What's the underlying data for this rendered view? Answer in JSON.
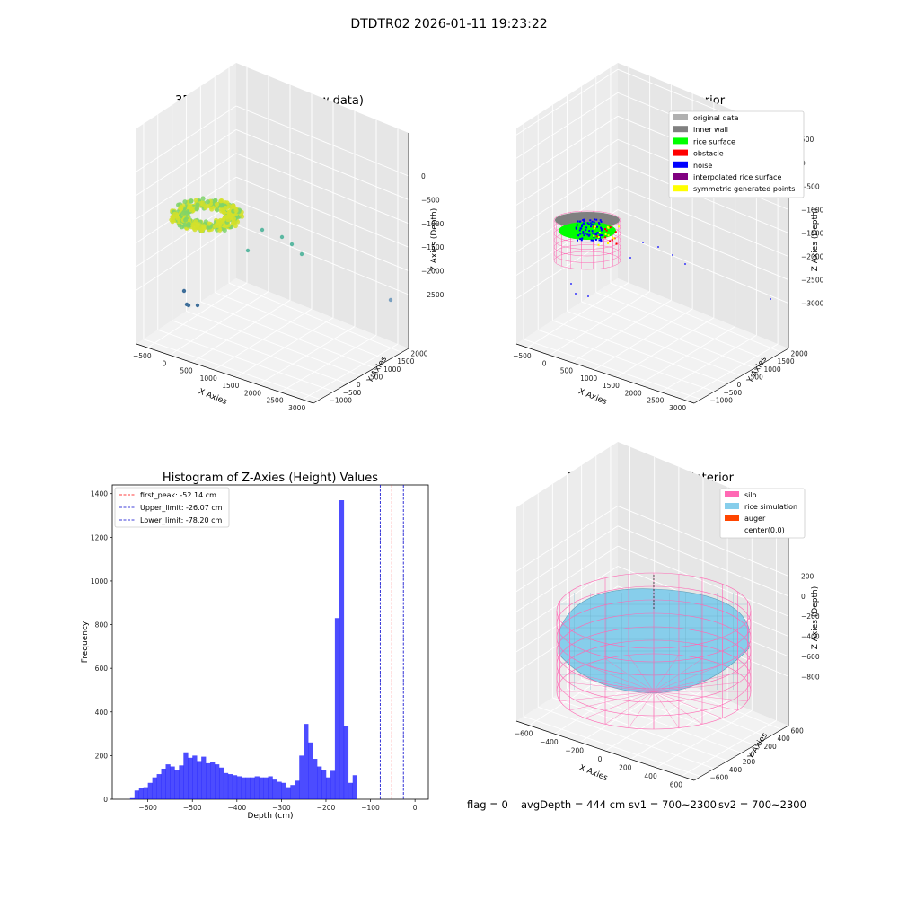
{
  "suptitle": "DTDTR02 2026-01-11 19:23:22",
  "colors": {
    "original": "#b0b0b0",
    "wall": "#808080",
    "rice": "#00ff00",
    "obstacle": "#ff0000",
    "noise": "#0000ff",
    "interp": "#800080",
    "sym": "#ffff00",
    "silo": "#ff69b4",
    "rice_sim": "#87ceeb",
    "auger": "#ff4500",
    "hist": "#0000ff",
    "peak": "#ff0000",
    "limit": "#0000cd",
    "raw_yellow": "#d4e02a",
    "raw_green": "#7fd36a",
    "raw_teal": "#5cb8a2",
    "raw_blue": "#3f6f9a"
  },
  "panel1": {
    "title": "3D Plot of Silo Interior(row data)",
    "xlabel": "X Axies",
    "ylabel": "Y Axies",
    "zlabel": "Z Axies (Depth)",
    "xticks": [
      "−500",
      "0",
      "500",
      "1000",
      "1500",
      "2000",
      "2500",
      "3000"
    ],
    "yticks": [
      "−1000",
      "−500",
      "0",
      "500",
      "1000",
      "1500",
      "2000"
    ],
    "zticks": [
      "0",
      "−500",
      "−1000",
      "−1500",
      "−2000",
      "−2500"
    ]
  },
  "panel2": {
    "title": "3D classify of Silo Interior",
    "xlabel": "X Axies",
    "ylabel": "Y Axies",
    "zlabel": "Z Axies (Depth)",
    "xticks": [
      "−500",
      "0",
      "500",
      "1000",
      "1500",
      "2000",
      "2500",
      "3000"
    ],
    "yticks": [
      "−1000",
      "−500",
      "0",
      "500",
      "1000",
      "1500",
      "2000"
    ],
    "zticks": [
      "500",
      "0",
      "−500",
      "−1000",
      "−1500",
      "−2000",
      "−2500",
      "−3000"
    ],
    "legend": [
      "original data",
      "inner wall",
      "rice surface",
      "obstacle",
      "noise",
      "interpolated rice surface",
      "symmetric generated points"
    ]
  },
  "panel4": {
    "title": "3D simulation of Silo Interior",
    "xlabel": "X Axies",
    "ylabel": "Y Axies",
    "zlabel": "Z Axies (Depth)",
    "xticks": [
      "−600",
      "−400",
      "−200",
      "0",
      "200",
      "400",
      "600"
    ],
    "yticks": [
      "−600",
      "−400",
      "−200",
      "0",
      "200",
      "400",
      "600"
    ],
    "zticks": [
      "200",
      "0",
      "−200",
      "−400",
      "−600",
      "−800"
    ],
    "legend": [
      "silo",
      "rice simulation",
      "auger",
      "center(0,0)"
    ]
  },
  "status": {
    "flag": "flag = 0",
    "avg": "avgDepth = 444 cm",
    "sv1": "sv1 = 700~2300",
    "sv2": "sv2 = 700~2300"
  },
  "chart_data": [
    {
      "type": "scatter3d",
      "title": "3D Plot of Silo Interior(row data)",
      "xlabel": "X Axies",
      "ylabel": "Y Axies",
      "zlabel": "Z Axies (Depth)",
      "xlim": [
        -500,
        3000
      ],
      "ylim": [
        -1000,
        2000
      ],
      "zlim": [
        -2500,
        0
      ]
    },
    {
      "type": "scatter3d",
      "title": "3D classify of Silo Interior",
      "xlabel": "X Axies",
      "ylabel": "Y Axies",
      "zlabel": "Z Axies (Depth)",
      "xlim": [
        -500,
        3000
      ],
      "ylim": [
        -1000,
        2000
      ],
      "zlim": [
        -3000,
        500
      ],
      "legend": [
        "original data",
        "inner wall",
        "rice surface",
        "obstacle",
        "noise",
        "interpolated rice surface",
        "symmetric generated points"
      ],
      "legend_position": "top-right"
    },
    {
      "type": "bar",
      "title": "Histogram of Z-Axies (Height) Values",
      "xlabel": "Depth (cm)",
      "ylabel": "Frequency",
      "xlim": [
        -680,
        30
      ],
      "ylim": [
        0,
        1440
      ],
      "xticks": [
        -600,
        -500,
        -400,
        -300,
        -200,
        -100,
        0
      ],
      "yticks": [
        0,
        200,
        400,
        600,
        800,
        1000,
        1200,
        1400
      ],
      "bin_start": -640,
      "bin_width": 10,
      "values": [
        5,
        40,
        50,
        55,
        75,
        100,
        115,
        140,
        160,
        150,
        135,
        155,
        215,
        190,
        200,
        175,
        195,
        165,
        170,
        160,
        145,
        120,
        115,
        110,
        105,
        100,
        100,
        100,
        105,
        100,
        100,
        105,
        90,
        80,
        75,
        55,
        65,
        85,
        200,
        345,
        260,
        185,
        150,
        135,
        100,
        130,
        830,
        1370,
        335,
        75,
        110
      ],
      "lines": [
        {
          "name": "first_peak: -52.14 cm",
          "x": -52.14,
          "style": "red-dashed"
        },
        {
          "name": "Upper_limit: -26.07 cm",
          "x": -26.07,
          "style": "blue-dashed"
        },
        {
          "name": "Lower_limit: -78.20 cm",
          "x": -78.2,
          "style": "blue-dashed"
        }
      ],
      "legend_position": "top-left"
    },
    {
      "type": "surface3d",
      "title": "3D simulation of Silo Interior",
      "xlabel": "X Axies",
      "ylabel": "Y Axies",
      "zlabel": "Z Axies (Depth)",
      "xlim": [
        -650,
        650
      ],
      "ylim": [
        -650,
        650
      ],
      "zlim": [
        -900,
        300
      ],
      "legend": [
        "silo",
        "rice simulation",
        "auger",
        "center(0,0)"
      ],
      "legend_position": "top-right"
    }
  ]
}
